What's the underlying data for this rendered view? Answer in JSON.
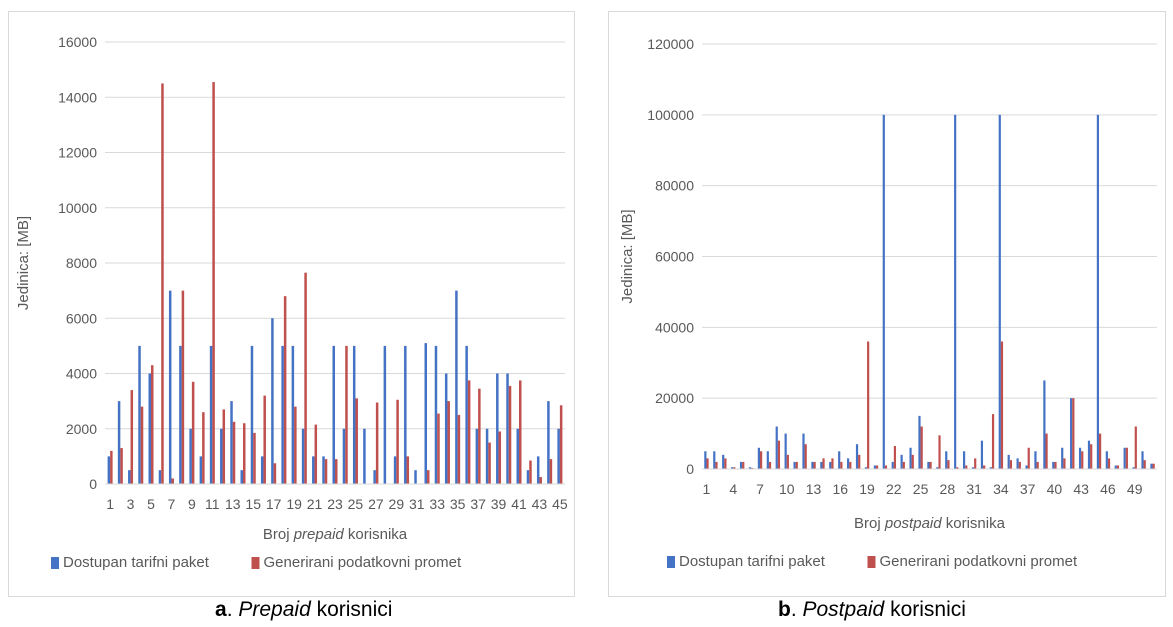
{
  "chart_data": [
    {
      "type": "bar",
      "ylabel": "Jedinica: [MB]",
      "xlabel_parts": [
        "Broj ",
        "prepaid",
        " korisnika"
      ],
      "ylim": [
        0,
        16000
      ],
      "yticks": [
        0,
        2000,
        4000,
        6000,
        8000,
        10000,
        12000,
        14000,
        16000
      ],
      "x": [
        1,
        2,
        3,
        4,
        5,
        6,
        7,
        8,
        9,
        10,
        11,
        12,
        13,
        14,
        15,
        16,
        17,
        18,
        19,
        20,
        21,
        22,
        23,
        24,
        25,
        26,
        27,
        28,
        29,
        30,
        31,
        32,
        33,
        34,
        35,
        36,
        37,
        38,
        39,
        40,
        41,
        42,
        43,
        44,
        45
      ],
      "xtick_labels": [
        "1",
        "3",
        "5",
        "7",
        "9",
        "11",
        "13",
        "15",
        "17",
        "19",
        "21",
        "23",
        "25",
        "27",
        "29",
        "31",
        "33",
        "35",
        "37",
        "39",
        "41",
        "43",
        "45"
      ],
      "grid": true,
      "legend_position": "bottom",
      "series": [
        {
          "name": "Dostupan tarifni paket",
          "color": "#4472c4",
          "values": [
            1000,
            3000,
            500,
            5000,
            4000,
            500,
            7000,
            5000,
            2000,
            1000,
            5000,
            2000,
            3000,
            500,
            5000,
            1000,
            6000,
            5000,
            5000,
            2000,
            1000,
            1000,
            5000,
            2000,
            5000,
            2000,
            500,
            5000,
            1000,
            5000,
            500,
            5100,
            5000,
            4000,
            7000,
            5000,
            2000,
            2000,
            4000,
            4000,
            2000,
            500,
            1000,
            3000,
            2000
          ]
        },
        {
          "name": "Generirani podatkovni promet",
          "color": "#c0504d",
          "values": [
            1200,
            1300,
            3400,
            2800,
            4300,
            14500,
            200,
            7000,
            3700,
            2600,
            14550,
            2700,
            2250,
            2200,
            1850,
            3200,
            750,
            6800,
            2800,
            7650,
            2150,
            900,
            900,
            5000,
            3100,
            0,
            2950,
            0,
            3050,
            1000,
            0,
            500,
            2550,
            3000,
            2500,
            3750,
            3450,
            1500,
            1900,
            3550,
            3750,
            850,
            250,
            900,
            2850
          ]
        }
      ]
    },
    {
      "type": "bar",
      "ylabel": "Jedinica: [MB]",
      "xlabel_parts": [
        "Broj ",
        "postpaid",
        " korisnika"
      ],
      "ylim": [
        0,
        120000
      ],
      "yticks": [
        0,
        20000,
        40000,
        60000,
        80000,
        100000,
        120000
      ],
      "x": [
        1,
        2,
        3,
        4,
        5,
        6,
        7,
        8,
        9,
        10,
        11,
        12,
        13,
        14,
        15,
        16,
        17,
        18,
        19,
        20,
        21,
        22,
        23,
        24,
        25,
        26,
        27,
        28,
        29,
        30,
        31,
        32,
        33,
        34,
        35,
        36,
        37,
        38,
        39,
        40,
        41,
        42,
        43,
        44,
        45,
        46,
        47,
        48,
        49,
        50,
        51
      ],
      "xtick_labels": [
        "1",
        "4",
        "7",
        "10",
        "13",
        "16",
        "19",
        "22",
        "25",
        "28",
        "31",
        "34",
        "37",
        "40",
        "43",
        "46",
        "49"
      ],
      "grid": true,
      "legend_position": "bottom",
      "series": [
        {
          "name": "Dostupan tarifni paket",
          "color": "#4472c4",
          "values": [
            5000,
            5000,
            4000,
            500,
            2000,
            500,
            6000,
            5000,
            12000,
            10000,
            2000,
            10000,
            2000,
            2000,
            2000,
            5000,
            3000,
            7000,
            500,
            1000,
            100000,
            2000,
            4000,
            6000,
            15000,
            2000,
            500,
            5000,
            100000,
            5000,
            500,
            8000,
            500,
            100000,
            4000,
            3000,
            1000,
            5000,
            25000,
            2000,
            6000,
            20000,
            6000,
            8000,
            100000,
            5000,
            1000,
            6000,
            500,
            5000,
            1500
          ]
        },
        {
          "name": "Generirani podatkovni promet",
          "color": "#c0504d",
          "values": [
            3000,
            2000,
            3000,
            500,
            2000,
            300,
            5000,
            2000,
            8000,
            4000,
            2000,
            7000,
            2000,
            3000,
            3000,
            2000,
            2000,
            4000,
            36000,
            1000,
            1000,
            6500,
            2000,
            4000,
            12000,
            2000,
            9500,
            2500,
            500,
            1000,
            3000,
            1000,
            15500,
            36000,
            2500,
            2000,
            6000,
            2000,
            10000,
            2000,
            3000,
            20000,
            5000,
            7000,
            10000,
            3000,
            1000,
            6000,
            12000,
            2500,
            1500
          ]
        }
      ]
    }
  ],
  "captions": {
    "a": {
      "letter": "a",
      "sep": ". ",
      "italic": "Prepaid",
      "rest": " korisnici"
    },
    "b": {
      "letter": "b",
      "sep": ". ",
      "italic": "Postpaid",
      "rest": " korisnici"
    }
  }
}
